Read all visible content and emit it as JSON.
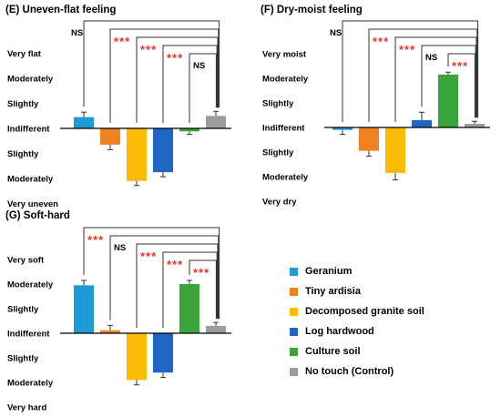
{
  "chart_data": [
    {
      "type": "bar",
      "title": "(E) Uneven-flat feeling",
      "ticks_top": [
        "Very flat",
        "Moderately",
        "Slightly"
      ],
      "tick_mid": "Indifferent",
      "ticks_bottom": [
        "Slightly",
        "Moderately",
        "Very uneven"
      ],
      "ylim": [
        -3,
        3
      ],
      "categories": [
        "Geranium",
        "Tiny ardisia",
        "Decomposed granite soil",
        "Log hardwood",
        "Culture soil",
        "No touch (Control)"
      ],
      "values": [
        0.45,
        -0.65,
        -2.1,
        -1.75,
        -0.12,
        0.5
      ],
      "errors": [
        0.2,
        0.2,
        0.18,
        0.18,
        0.12,
        0.18
      ],
      "significance": [
        "NS",
        "***",
        "***",
        "***",
        "NS"
      ]
    },
    {
      "type": "bar",
      "title": "(F) Dry-moist feeling",
      "ticks_top": [
        "Very moist",
        "Moderately",
        "Slightly"
      ],
      "tick_mid": "Indifferent",
      "ticks_bottom": [
        "Slightly",
        "Moderately",
        "Very dry"
      ],
      "ylim": [
        -3,
        3
      ],
      "categories": [
        "Geranium",
        "Tiny ardisia",
        "Decomposed granite soil",
        "Log hardwood",
        "Culture soil",
        "No touch (Control)"
      ],
      "values": [
        -0.1,
        -0.95,
        -1.85,
        0.3,
        2.15,
        0.15
      ],
      "errors": [
        0.18,
        0.22,
        0.28,
        0.32,
        0.1,
        0.1
      ],
      "significance": [
        "NS",
        "***",
        "***",
        "NS",
        "***"
      ]
    },
    {
      "type": "bar",
      "title": "(G) Soft-hard",
      "ticks_top": [
        "Very soft",
        "Moderately",
        "Slightly"
      ],
      "tick_mid": "Indifferent",
      "ticks_bottom": [
        "Slightly",
        "Moderately",
        "Very hard"
      ],
      "ylim": [
        -3,
        3
      ],
      "categories": [
        "Geranium",
        "Tiny ardisia",
        "Decomposed granite soil",
        "Log hardwood",
        "Culture soil",
        "No touch (Control)"
      ],
      "values": [
        1.95,
        0.12,
        -1.9,
        -1.6,
        2.0,
        0.3
      ],
      "errors": [
        0.2,
        0.2,
        0.2,
        0.2,
        0.15,
        0.14
      ],
      "significance": [
        "***",
        "NS",
        "***",
        "***",
        "***"
      ]
    }
  ],
  "legend": {
    "items": [
      {
        "label": "Geranium",
        "color": "#1f9ad8"
      },
      {
        "label": "Tiny ardisia",
        "color": "#f08122"
      },
      {
        "label": "Decomposed granite soil",
        "color": "#fbbb05"
      },
      {
        "label": "Log hardwood",
        "color": "#1f67c2"
      },
      {
        "label": "Culture soil",
        "color": "#3aa53a"
      },
      {
        "label": "No touch (Control)",
        "color": "#9c9c9c"
      }
    ]
  }
}
